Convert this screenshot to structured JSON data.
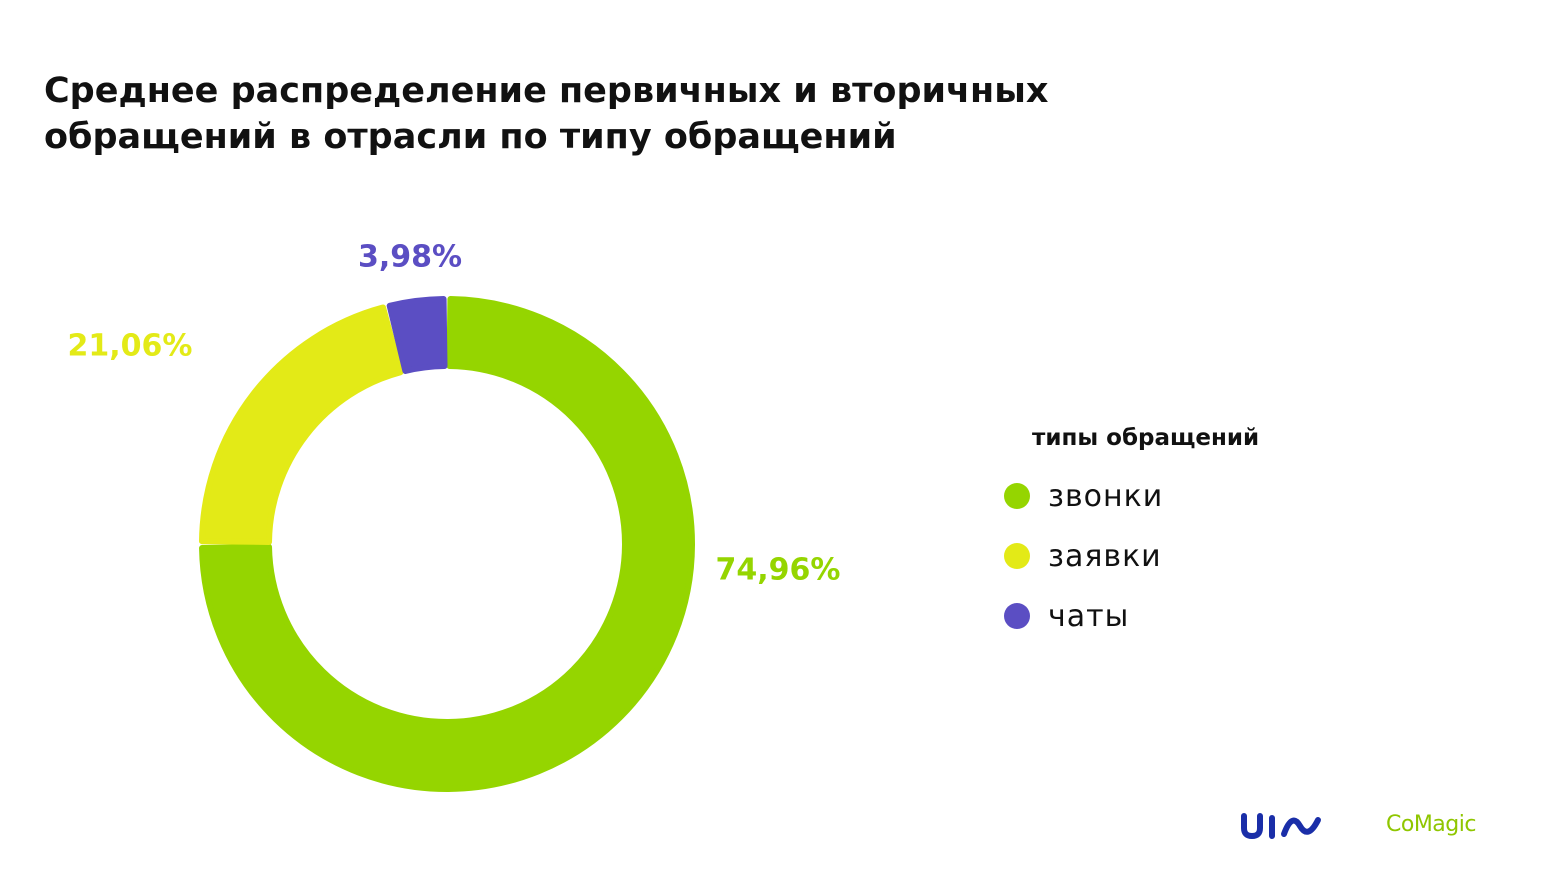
{
  "title_lines": [
    "Среднее распределение первичных и вторичных",
    "обращений в отрасли по типу обращений"
  ],
  "chart_data": {
    "type": "pie",
    "title": "Среднее распределение первичных и вторичных обращений в отрасли по типу обращений",
    "slices": [
      {
        "name": "звонки",
        "value": 74.96,
        "label": "74,96%",
        "color": "#95d500"
      },
      {
        "name": "заявки",
        "value": 21.06,
        "label": "21,06%",
        "color": "#e3ea17"
      },
      {
        "name": "чаты",
        "value": 3.98,
        "label": "3,98%",
        "color": "#5b4ec3"
      }
    ],
    "legend": {
      "title": "типы обращений",
      "placement": "right"
    }
  },
  "logos": {
    "left": "uis",
    "right": "CoMagic"
  }
}
